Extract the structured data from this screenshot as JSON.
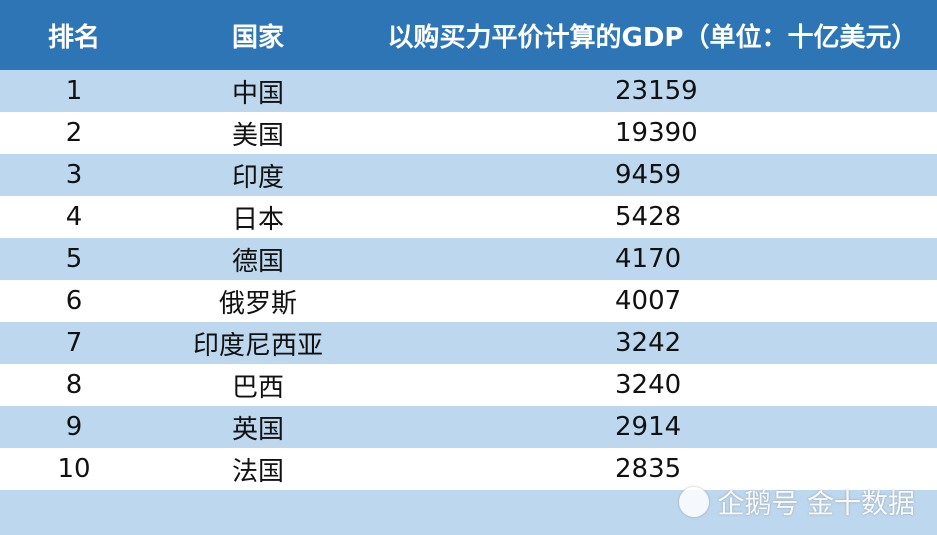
{
  "chart_data": {
    "type": "table",
    "columns": [
      "排名",
      "国家",
      "以购买力平价计算的GDP（单位：十亿美元）"
    ],
    "rows": [
      {
        "rank": "1",
        "country": "中国",
        "gdp": "23159"
      },
      {
        "rank": "2",
        "country": "美国",
        "gdp": "19390"
      },
      {
        "rank": "3",
        "country": "印度",
        "gdp": "9459"
      },
      {
        "rank": "4",
        "country": "日本",
        "gdp": "5428"
      },
      {
        "rank": "5",
        "country": "德国",
        "gdp": "4170"
      },
      {
        "rank": "6",
        "country": "俄罗斯",
        "gdp": "4007"
      },
      {
        "rank": "7",
        "country": "印度尼西亚",
        "gdp": "3242"
      },
      {
        "rank": "8",
        "country": "巴西",
        "gdp": "3240"
      },
      {
        "rank": "9",
        "country": "英国",
        "gdp": "2914"
      },
      {
        "rank": "10",
        "country": "法国",
        "gdp": "2835"
      }
    ],
    "header_color": "#2e75b6",
    "band_color": "#bdd7ee"
  },
  "watermark": {
    "text": "企鹅号 金十数据",
    "icon": "penguin-logo-icon"
  }
}
